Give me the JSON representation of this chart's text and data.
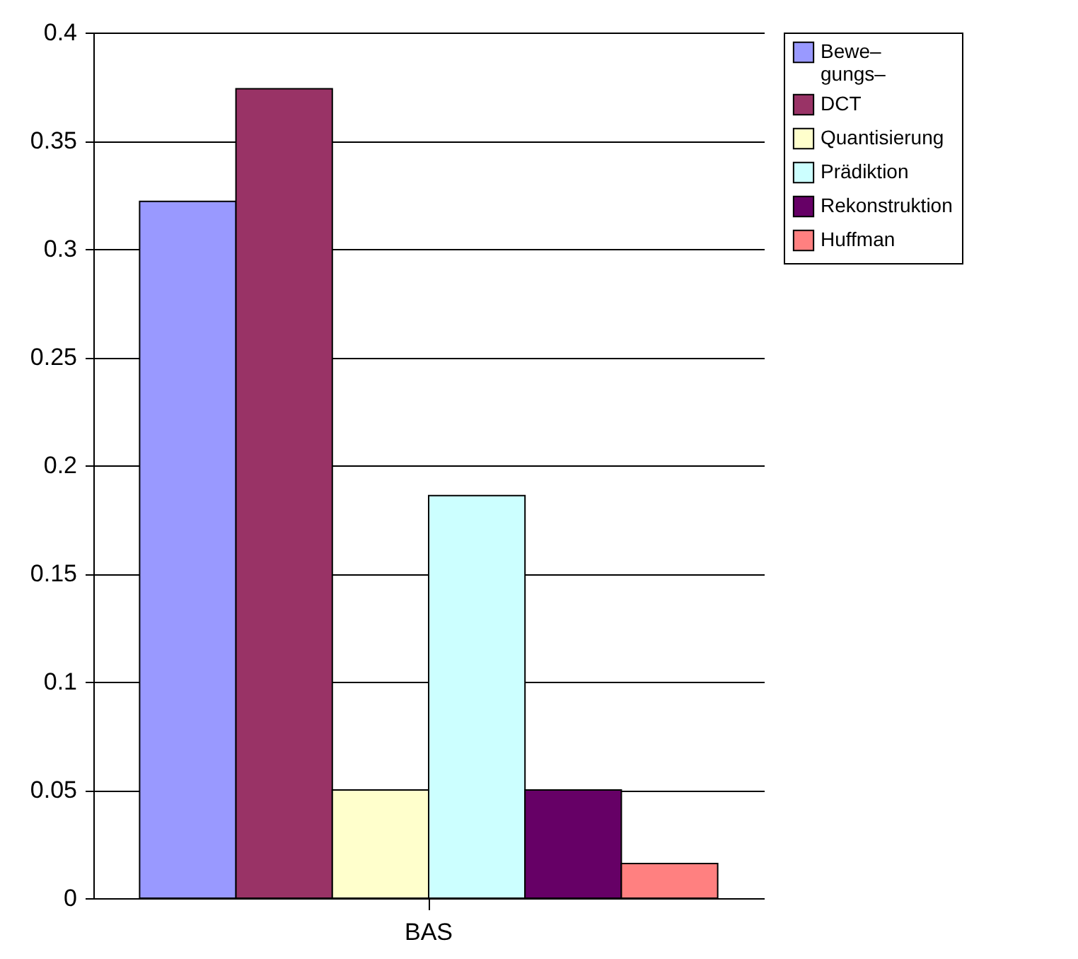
{
  "chart_data": {
    "type": "bar",
    "categories": [
      "BAS"
    ],
    "series": [
      {
        "name": "Bewe– gungs–",
        "color": "#9999ff",
        "values": [
          0.322
        ]
      },
      {
        "name": "DCT",
        "color": "#993366",
        "values": [
          0.374
        ]
      },
      {
        "name": "Quantisierung",
        "color": "#ffffcc",
        "values": [
          0.05
        ]
      },
      {
        "name": "Prädiktion",
        "color": "#ccffff",
        "values": [
          0.186
        ]
      },
      {
        "name": "Rekonstruktion",
        "color": "#660066",
        "values": [
          0.05
        ]
      },
      {
        "name": "Huffman",
        "color": "#ff8080",
        "values": [
          0.016
        ]
      }
    ],
    "ylim": [
      0,
      0.4
    ],
    "yticks": [
      0,
      0.05,
      0.1,
      0.15,
      0.2,
      0.25,
      0.3,
      0.35,
      0.4
    ],
    "grid": "y",
    "legend": "right"
  }
}
